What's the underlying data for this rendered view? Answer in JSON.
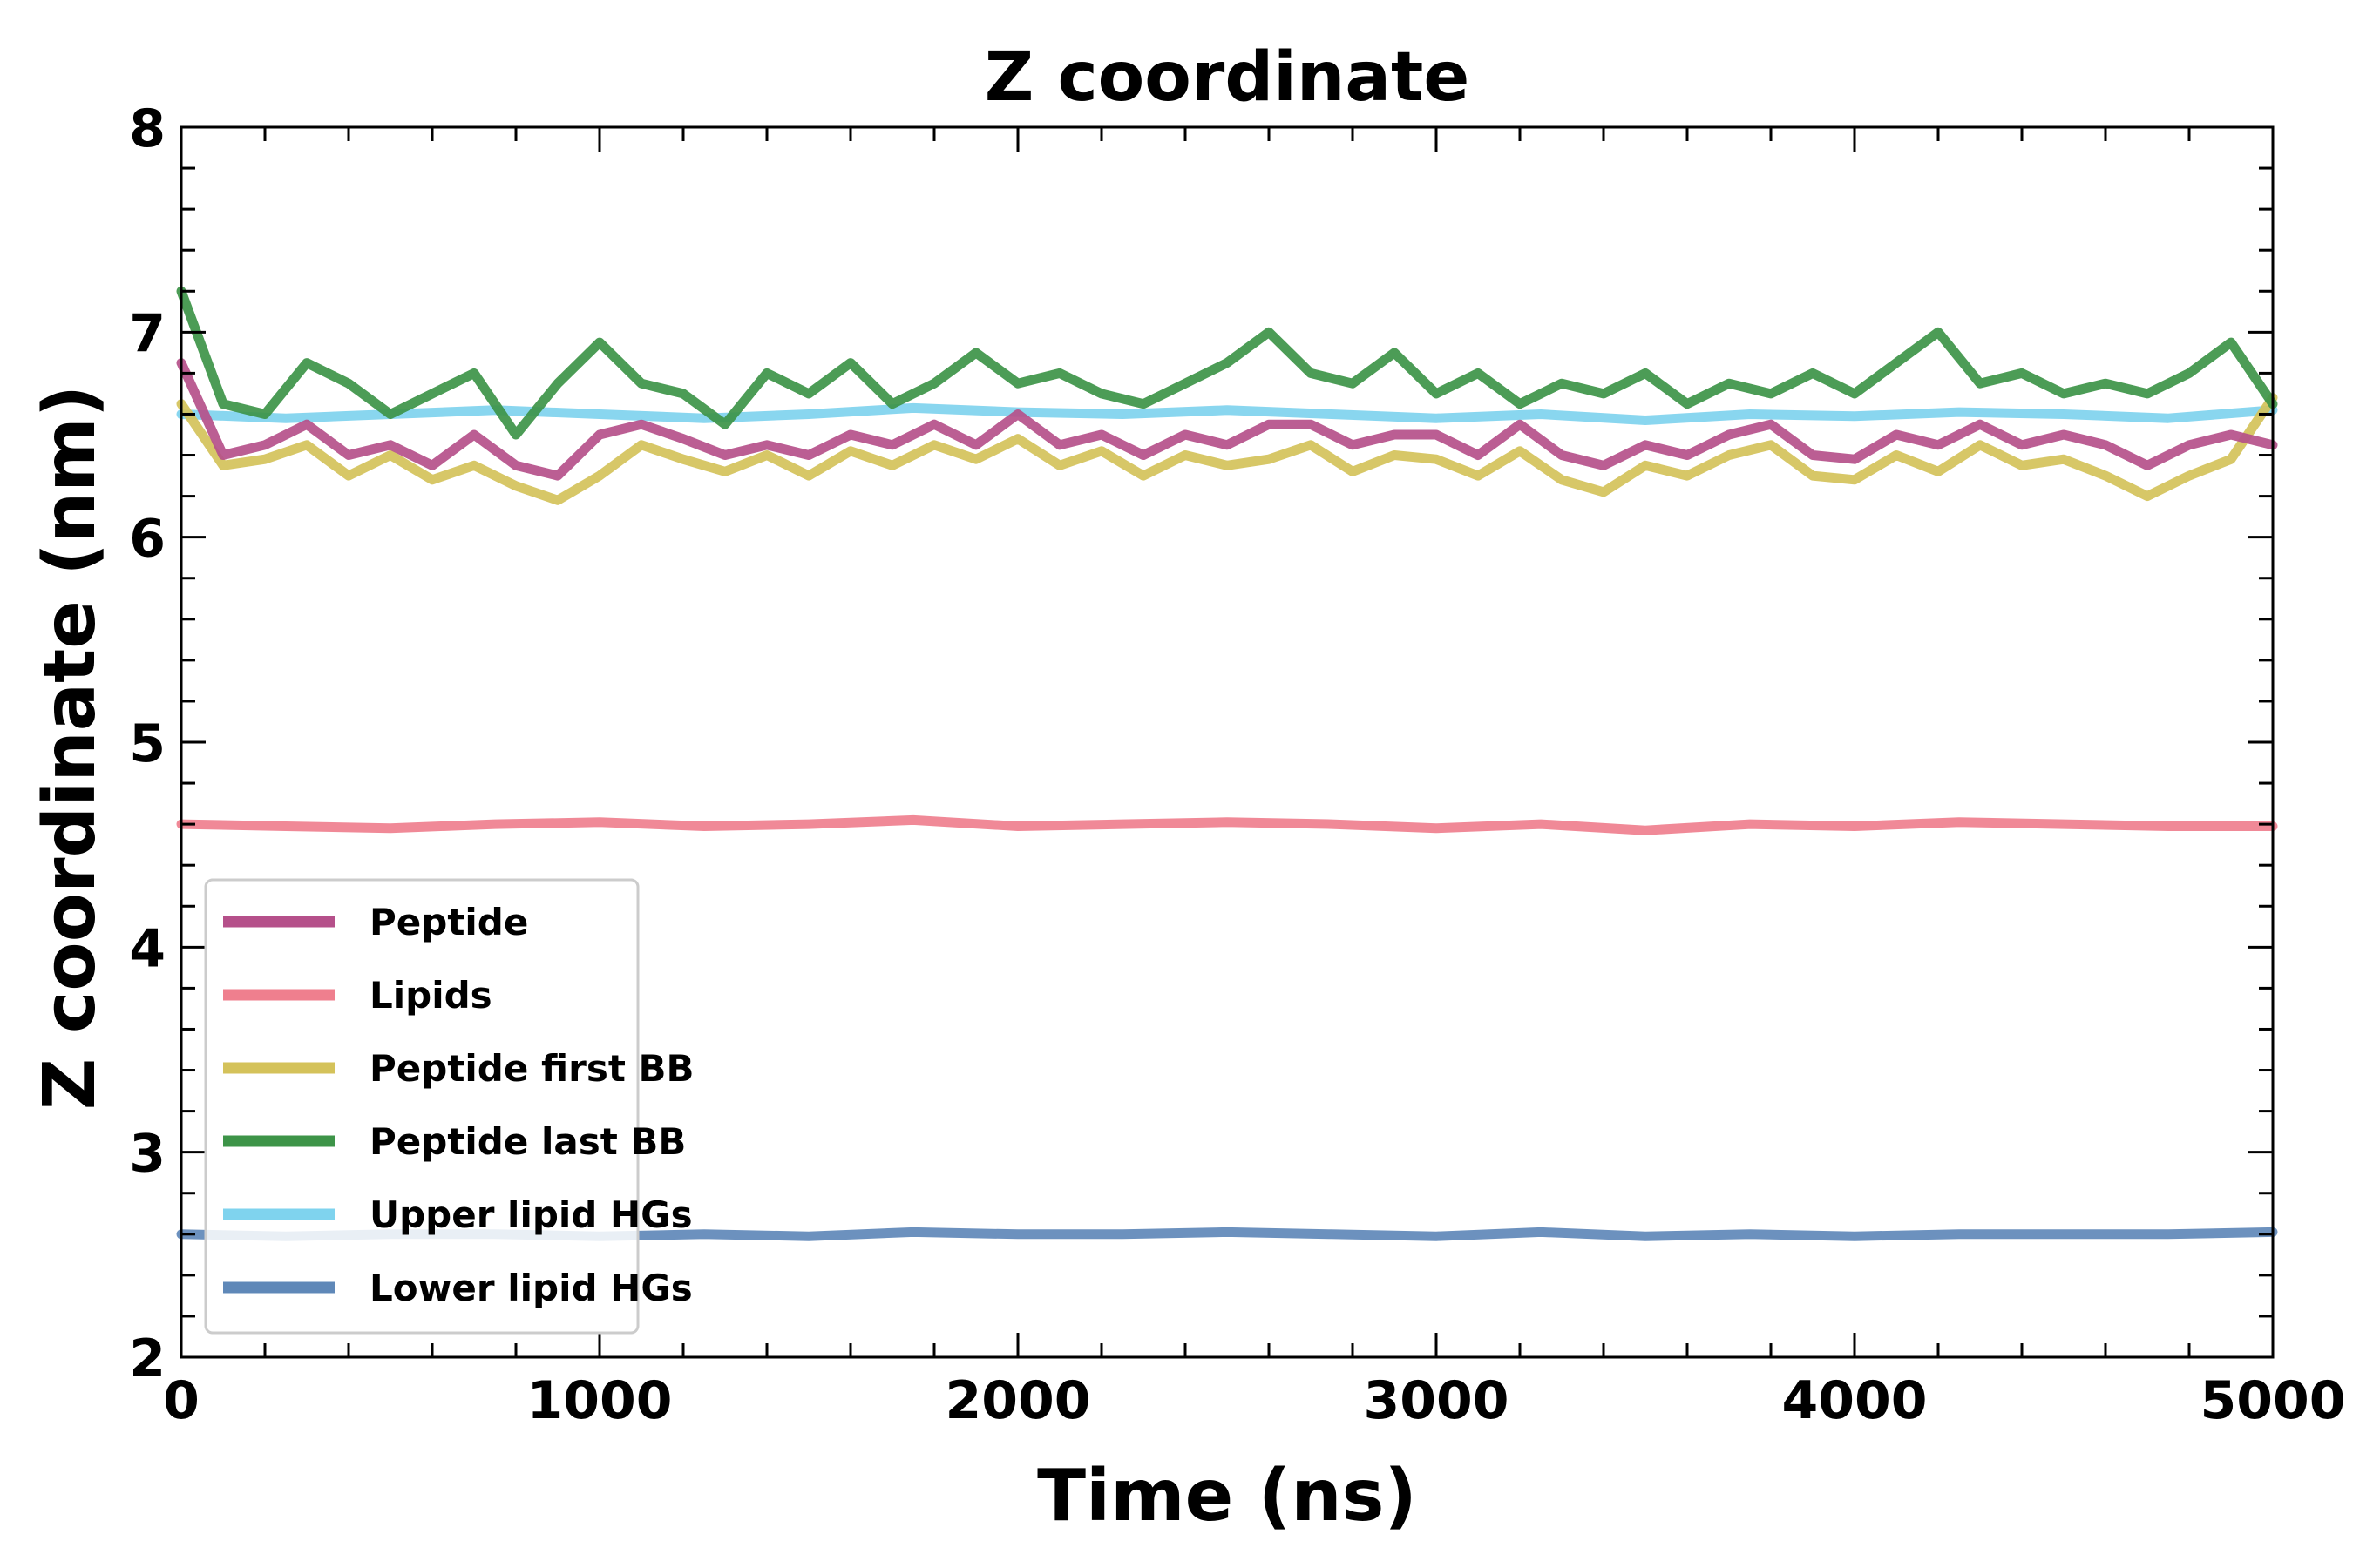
{
  "chart_data": {
    "type": "line",
    "title": "Z coordinate",
    "xlabel": "Time (ns)",
    "ylabel": "Z coordinate (nm)",
    "xlim": [
      0,
      5000
    ],
    "ylim": [
      2,
      8
    ],
    "xticks": [
      0,
      1000,
      2000,
      3000,
      4000,
      5000
    ],
    "yticks": [
      2,
      3,
      4,
      5,
      6,
      7,
      8
    ],
    "grid": false,
    "legend_position": "lower-left",
    "series": [
      {
        "name": "Upper lipid HGs",
        "color": "#7fd3ee",
        "x": [
          0,
          250,
          500,
          750,
          1000,
          1250,
          1500,
          1750,
          2000,
          2250,
          2500,
          2750,
          3000,
          3250,
          3500,
          3750,
          4000,
          4250,
          4500,
          4750,
          5000
        ],
        "values": [
          6.6,
          6.58,
          6.6,
          6.62,
          6.6,
          6.58,
          6.6,
          6.63,
          6.61,
          6.6,
          6.62,
          6.6,
          6.58,
          6.6,
          6.57,
          6.6,
          6.59,
          6.61,
          6.6,
          6.58,
          6.62
        ]
      },
      {
        "name": "Lower lipid HGs",
        "color": "#5f88b8",
        "x": [
          0,
          250,
          500,
          750,
          1000,
          1250,
          1500,
          1750,
          2000,
          2250,
          2500,
          2750,
          3000,
          3250,
          3500,
          3750,
          4000,
          4250,
          4500,
          4750,
          5000
        ],
        "values": [
          2.6,
          2.59,
          2.6,
          2.6,
          2.59,
          2.6,
          2.59,
          2.61,
          2.6,
          2.6,
          2.61,
          2.6,
          2.59,
          2.61,
          2.59,
          2.6,
          2.59,
          2.6,
          2.6,
          2.6,
          2.61
        ]
      },
      {
        "name": "Lipids",
        "color": "#ef7f8e",
        "x": [
          0,
          250,
          500,
          750,
          1000,
          1250,
          1500,
          1750,
          2000,
          2250,
          2500,
          2750,
          3000,
          3250,
          3500,
          3750,
          4000,
          4250,
          4500,
          4750,
          5000
        ],
        "values": [
          4.6,
          4.59,
          4.58,
          4.6,
          4.61,
          4.59,
          4.6,
          4.62,
          4.59,
          4.6,
          4.61,
          4.6,
          4.58,
          4.6,
          4.57,
          4.6,
          4.59,
          4.61,
          4.6,
          4.59,
          4.59
        ]
      },
      {
        "name": "Peptide first BB",
        "color": "#d4c25a",
        "x": [
          0,
          100,
          200,
          300,
          400,
          500,
          600,
          700,
          800,
          900,
          1000,
          1100,
          1200,
          1300,
          1400,
          1500,
          1600,
          1700,
          1800,
          1900,
          2000,
          2100,
          2200,
          2300,
          2400,
          2500,
          2600,
          2700,
          2800,
          2900,
          3000,
          3100,
          3200,
          3300,
          3400,
          3500,
          3600,
          3700,
          3800,
          3900,
          4000,
          4100,
          4200,
          4300,
          4400,
          4500,
          4600,
          4700,
          4800,
          4900,
          5000
        ],
        "values": [
          6.65,
          6.35,
          6.38,
          6.45,
          6.3,
          6.4,
          6.28,
          6.35,
          6.25,
          6.18,
          6.3,
          6.45,
          6.38,
          6.32,
          6.4,
          6.3,
          6.42,
          6.35,
          6.45,
          6.38,
          6.48,
          6.35,
          6.42,
          6.3,
          6.4,
          6.35,
          6.38,
          6.45,
          6.32,
          6.4,
          6.38,
          6.3,
          6.42,
          6.28,
          6.22,
          6.35,
          6.3,
          6.4,
          6.45,
          6.3,
          6.28,
          6.4,
          6.32,
          6.45,
          6.35,
          6.38,
          6.3,
          6.2,
          6.3,
          6.38,
          6.68
        ]
      },
      {
        "name": "Peptide last BB",
        "color": "#3d9448",
        "x": [
          0,
          100,
          200,
          300,
          400,
          500,
          600,
          700,
          800,
          900,
          1000,
          1100,
          1200,
          1300,
          1400,
          1500,
          1600,
          1700,
          1800,
          1900,
          2000,
          2100,
          2200,
          2300,
          2400,
          2500,
          2600,
          2700,
          2800,
          2900,
          3000,
          3100,
          3200,
          3300,
          3400,
          3500,
          3600,
          3700,
          3800,
          3900,
          4000,
          4100,
          4200,
          4300,
          4400,
          4500,
          4600,
          4700,
          4800,
          4900,
          5000
        ],
        "values": [
          7.2,
          6.65,
          6.6,
          6.85,
          6.75,
          6.6,
          6.7,
          6.8,
          6.5,
          6.75,
          6.95,
          6.75,
          6.7,
          6.55,
          6.8,
          6.7,
          6.85,
          6.65,
          6.75,
          6.9,
          6.75,
          6.8,
          6.7,
          6.65,
          6.75,
          6.85,
          7.0,
          6.8,
          6.75,
          6.9,
          6.7,
          6.8,
          6.65,
          6.75,
          6.7,
          6.8,
          6.65,
          6.75,
          6.7,
          6.8,
          6.7,
          6.85,
          7.0,
          6.75,
          6.8,
          6.7,
          6.75,
          6.7,
          6.8,
          6.95,
          6.65
        ]
      },
      {
        "name": "Peptide",
        "color": "#b5508a",
        "x": [
          0,
          100,
          200,
          300,
          400,
          500,
          600,
          700,
          800,
          900,
          1000,
          1100,
          1200,
          1300,
          1400,
          1500,
          1600,
          1700,
          1800,
          1900,
          2000,
          2100,
          2200,
          2300,
          2400,
          2500,
          2600,
          2700,
          2800,
          2900,
          3000,
          3100,
          3200,
          3300,
          3400,
          3500,
          3600,
          3700,
          3800,
          3900,
          4000,
          4100,
          4200,
          4300,
          4400,
          4500,
          4600,
          4700,
          4800,
          4900,
          5000
        ],
        "values": [
          6.85,
          6.4,
          6.45,
          6.55,
          6.4,
          6.45,
          6.35,
          6.5,
          6.35,
          6.3,
          6.5,
          6.55,
          6.48,
          6.4,
          6.45,
          6.4,
          6.5,
          6.45,
          6.55,
          6.45,
          6.6,
          6.45,
          6.5,
          6.4,
          6.5,
          6.45,
          6.55,
          6.55,
          6.45,
          6.5,
          6.5,
          6.4,
          6.55,
          6.4,
          6.35,
          6.45,
          6.4,
          6.5,
          6.55,
          6.4,
          6.38,
          6.5,
          6.45,
          6.55,
          6.45,
          6.5,
          6.45,
          6.35,
          6.45,
          6.5,
          6.45
        ]
      }
    ],
    "legend_order": [
      "Peptide",
      "Lipids",
      "Peptide first BB",
      "Peptide last BB",
      "Upper lipid HGs",
      "Lower lipid HGs"
    ]
  }
}
